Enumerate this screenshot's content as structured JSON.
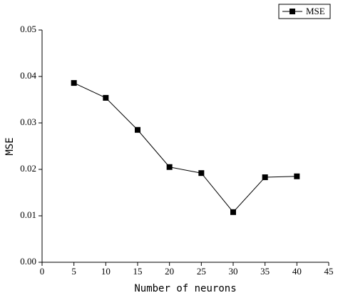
{
  "chart_data": {
    "type": "line",
    "x_label": "Number of neurons",
    "y_label": "MSE",
    "x": [
      5,
      10,
      15,
      20,
      25,
      30,
      35,
      40
    ],
    "series": [
      {
        "name": "MSE",
        "color": "#000000",
        "values": [
          0.0386,
          0.0354,
          0.0285,
          0.0205,
          0.0192,
          0.0108,
          0.0183,
          0.0185
        ]
      }
    ],
    "xlim": [
      0,
      45
    ],
    "xticks": [
      0,
      5,
      10,
      15,
      20,
      25,
      30,
      35,
      40,
      45
    ],
    "ylim": [
      0,
      0.05
    ],
    "yticks": [
      {
        "value": 0,
        "label": "0.00"
      },
      0.01,
      0.02,
      0.03,
      0.04,
      0.05
    ],
    "legend": "upper right",
    "grid": false
  }
}
